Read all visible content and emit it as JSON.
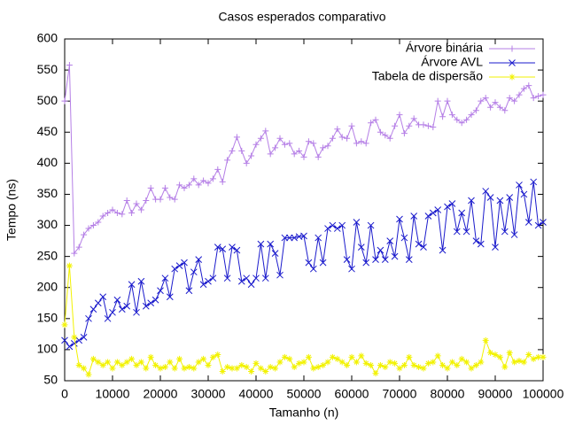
{
  "chart_data": {
    "type": "line",
    "title": "Casos esperados comparativo",
    "x_label": "Tamanho (n)",
    "y_label": "Tempo (ns)",
    "x": [
      0,
      1000,
      2000,
      3000,
      4000,
      5000,
      6000,
      7000,
      8000,
      9000,
      10000,
      11000,
      12000,
      13000,
      14000,
      15000,
      16000,
      17000,
      18000,
      19000,
      20000,
      21000,
      22000,
      23000,
      24000,
      25000,
      26000,
      27000,
      28000,
      29000,
      30000,
      31000,
      32000,
      33000,
      34000,
      35000,
      36000,
      37000,
      38000,
      39000,
      40000,
      41000,
      42000,
      43000,
      44000,
      45000,
      46000,
      47000,
      48000,
      49000,
      50000,
      51000,
      52000,
      53000,
      54000,
      55000,
      56000,
      57000,
      58000,
      59000,
      60000,
      61000,
      62000,
      63000,
      64000,
      65000,
      66000,
      67000,
      68000,
      69000,
      70000,
      71000,
      72000,
      73000,
      74000,
      75000,
      76000,
      77000,
      78000,
      79000,
      80000,
      81000,
      82000,
      83000,
      84000,
      85000,
      86000,
      87000,
      88000,
      89000,
      90000,
      91000,
      92000,
      93000,
      94000,
      95000,
      96000,
      97000,
      98000,
      99000,
      100000
    ],
    "series": [
      {
        "name": "Árvore binária",
        "color": "#b57fe6",
        "values": [
          500,
          558,
          255,
          265,
          285,
          295,
          300,
          305,
          315,
          320,
          325,
          320,
          318,
          340,
          320,
          335,
          325,
          340,
          360,
          342,
          342,
          360,
          345,
          342,
          365,
          360,
          365,
          375,
          365,
          372,
          368,
          375,
          390,
          370,
          405,
          420,
          442,
          420,
          400,
          412,
          430,
          440,
          452,
          415,
          425,
          440,
          430,
          432,
          415,
          420,
          410,
          435,
          432,
          410,
          425,
          428,
          440,
          455,
          442,
          440,
          460,
          432,
          435,
          432,
          465,
          470,
          450,
          445,
          440,
          460,
          478,
          448,
          460,
          472,
          462,
          462,
          460,
          458,
          500,
          475,
          500,
          478,
          470,
          465,
          470,
          478,
          485,
          500,
          505,
          490,
          498,
          490,
          485,
          505,
          500,
          510,
          520,
          525,
          505,
          508,
          510
        ]
      },
      {
        "name": "Árvore AVL",
        "color": "#1a1acc",
        "values": [
          115,
          105,
          110,
          115,
          120,
          150,
          165,
          175,
          185,
          150,
          160,
          180,
          165,
          170,
          205,
          160,
          210,
          170,
          175,
          180,
          195,
          215,
          185,
          230,
          235,
          240,
          195,
          225,
          245,
          205,
          210,
          215,
          265,
          262,
          215,
          265,
          260,
          210,
          215,
          205,
          215,
          270,
          215,
          270,
          255,
          220,
          280,
          280,
          280,
          282,
          283,
          240,
          230,
          280,
          240,
          295,
          300,
          295,
          300,
          245,
          230,
          305,
          265,
          240,
          300,
          245,
          260,
          245,
          275,
          250,
          310,
          280,
          245,
          315,
          270,
          265,
          315,
          320,
          325,
          260,
          330,
          335,
          290,
          320,
          290,
          340,
          275,
          270,
          355,
          345,
          265,
          340,
          290,
          345,
          285,
          365,
          350,
          305,
          370,
          300,
          305
        ]
      },
      {
        "name": "Tabela de dispersão",
        "color": "#f2f200",
        "values": [
          140,
          235,
          120,
          75,
          70,
          60,
          85,
          80,
          75,
          80,
          70,
          80,
          75,
          80,
          85,
          75,
          80,
          70,
          88,
          75,
          70,
          72,
          80,
          70,
          85,
          70,
          72,
          70,
          80,
          85,
          75,
          88,
          92,
          65,
          72,
          70,
          70,
          75,
          72,
          65,
          78,
          70,
          65,
          72,
          70,
          80,
          88,
          85,
          72,
          78,
          80,
          88,
          70,
          72,
          75,
          80,
          88,
          85,
          80,
          75,
          88,
          80,
          90,
          78,
          75,
          62,
          75,
          72,
          80,
          78,
          70,
          75,
          88,
          75,
          72,
          70,
          78,
          80,
          90,
          75,
          70,
          80,
          75,
          85,
          80,
          70,
          75,
          80,
          115,
          95,
          92,
          88,
          72,
          95,
          80,
          82,
          80,
          92,
          85,
          88,
          88
        ]
      }
    ],
    "xlim": [
      0,
      100000
    ],
    "xticks": [
      0,
      10000,
      20000,
      30000,
      40000,
      50000,
      60000,
      70000,
      80000,
      90000,
      100000
    ],
    "ylim": [
      50,
      600
    ],
    "yticks": [
      50,
      100,
      150,
      200,
      250,
      300,
      350,
      400,
      450,
      500,
      550,
      600
    ],
    "legend": "top-right",
    "grid": false
  }
}
